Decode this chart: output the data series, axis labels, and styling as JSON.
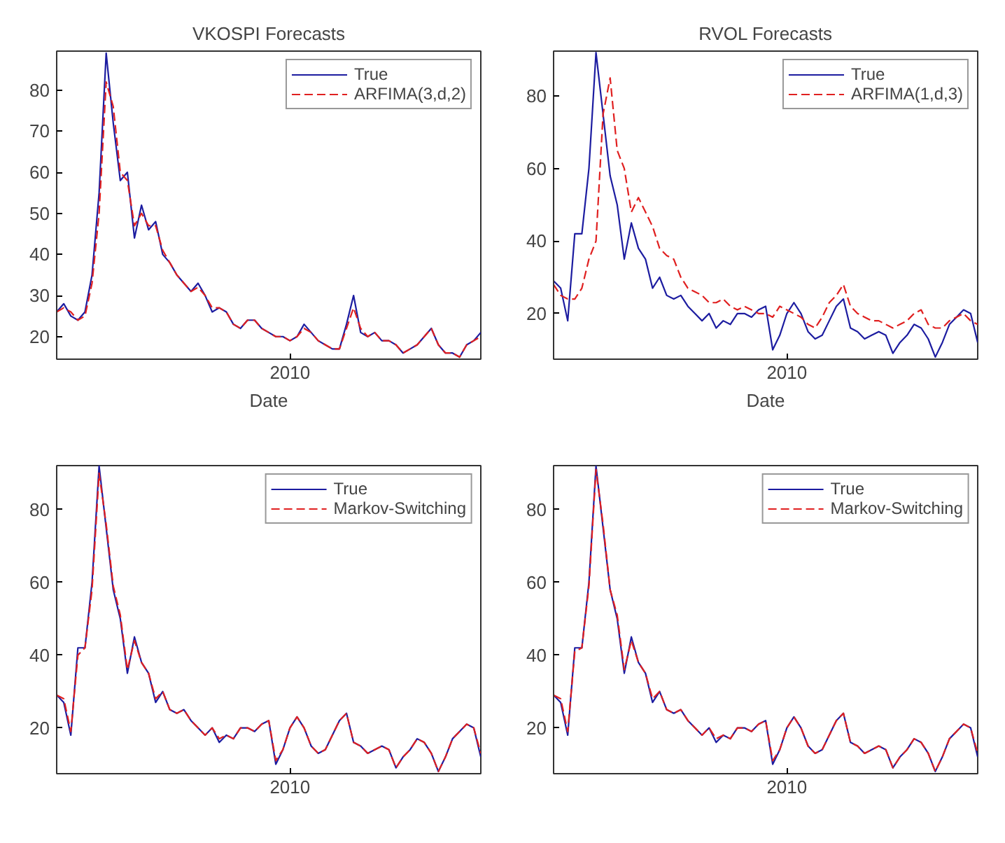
{
  "chart_data": [
    {
      "type": "line",
      "title": "VKOSPI Forecasts",
      "xlabel": "Date",
      "categories": [
        null,
        null,
        null,
        null,
        null,
        null,
        null,
        null,
        null,
        null,
        null,
        null,
        null,
        null,
        null,
        null,
        null,
        null,
        null,
        null,
        null,
        null,
        null,
        null,
        null,
        null,
        null,
        null,
        null,
        null,
        null,
        null,
        null,
        "2010",
        null,
        null,
        null,
        null,
        null,
        null,
        null,
        null,
        null,
        null,
        null,
        null,
        null,
        null,
        null,
        null,
        null,
        null,
        null,
        null,
        null,
        null,
        null,
        null,
        null,
        null,
        null
      ],
      "ylim": [
        14.5,
        89.5
      ],
      "yticks": [
        20,
        30,
        40,
        50,
        60,
        70,
        80
      ],
      "legend": "top right",
      "series": [
        {
          "name": "True",
          "color": "#1c1ca0",
          "line_style": "solid",
          "values": [
            26,
            28,
            25,
            24,
            26,
            35,
            55,
            89,
            72,
            58,
            60,
            44,
            52,
            46,
            48,
            40,
            38,
            35,
            33,
            31,
            33,
            30,
            26,
            27,
            26,
            23,
            22,
            24,
            24,
            22,
            21,
            20,
            20,
            19,
            20,
            23,
            21,
            19,
            18,
            17,
            17,
            23,
            30,
            21,
            20,
            21,
            19,
            19,
            18,
            16,
            17,
            18,
            20,
            22,
            18,
            16,
            16,
            15,
            18,
            19,
            21
          ]
        },
        {
          "name": "ARFIMA(3,d,2)",
          "color": "#e02020",
          "line_style": "dashed",
          "values": [
            26,
            27,
            26,
            24,
            25,
            33,
            50,
            82,
            76,
            60,
            58,
            47,
            50,
            47,
            47,
            41,
            38,
            35,
            33,
            31,
            32,
            30,
            27,
            27,
            26,
            23,
            22,
            24,
            24,
            22,
            21,
            20,
            20,
            19,
            20,
            22,
            21,
            19,
            18,
            17,
            17,
            22,
            27,
            22,
            20,
            21,
            19,
            19,
            18,
            16,
            17,
            18,
            20,
            22,
            18,
            16,
            16,
            15,
            18,
            19,
            20
          ]
        }
      ]
    },
    {
      "type": "line",
      "title": "RVOL Forecasts",
      "xlabel": "Date",
      "categories": [
        null,
        null,
        null,
        null,
        null,
        null,
        null,
        null,
        null,
        null,
        null,
        null,
        null,
        null,
        null,
        null,
        null,
        null,
        null,
        null,
        null,
        null,
        null,
        null,
        null,
        null,
        null,
        null,
        null,
        null,
        null,
        null,
        null,
        "2010",
        null,
        null,
        null,
        null,
        null,
        null,
        null,
        null,
        null,
        null,
        null,
        null,
        null,
        null,
        null,
        null,
        null,
        null,
        null,
        null,
        null,
        null,
        null,
        null,
        null,
        null,
        null
      ],
      "ylim": [
        7.4,
        92.4
      ],
      "yticks": [
        20,
        40,
        60,
        80
      ],
      "legend": "top right",
      "series": [
        {
          "name": "True",
          "color": "#1c1ca0",
          "line_style": "solid",
          "values": [
            29,
            27,
            18,
            42,
            42,
            60,
            92,
            75,
            58,
            50,
            35,
            45,
            38,
            35,
            27,
            30,
            25,
            24,
            25,
            22,
            20,
            18,
            20,
            16,
            18,
            17,
            20,
            20,
            19,
            21,
            22,
            10,
            14,
            20,
            23,
            20,
            15,
            13,
            14,
            18,
            22,
            24,
            16,
            15,
            13,
            14,
            15,
            14,
            9,
            12,
            14,
            17,
            16,
            13,
            8,
            12,
            17,
            19,
            21,
            20,
            12
          ]
        },
        {
          "name": "ARFIMA(1,d,3)",
          "color": "#e02020",
          "line_style": "dashed",
          "values": [
            28,
            25,
            24,
            24,
            27,
            35,
            40,
            75,
            85,
            65,
            60,
            48,
            52,
            48,
            44,
            38,
            36,
            35,
            30,
            27,
            26,
            25,
            23,
            23,
            24,
            22,
            21,
            22,
            21,
            20,
            20,
            19,
            22,
            21,
            20,
            19,
            17,
            16,
            19,
            23,
            25,
            28,
            22,
            20,
            19,
            18,
            18,
            17,
            16,
            17,
            18,
            20,
            21,
            17,
            16,
            16,
            18,
            19,
            20,
            18,
            17
          ]
        }
      ]
    },
    {
      "type": "line",
      "categories": [
        null,
        null,
        null,
        null,
        null,
        null,
        null,
        null,
        null,
        null,
        null,
        null,
        null,
        null,
        null,
        null,
        null,
        null,
        null,
        null,
        null,
        null,
        null,
        null,
        null,
        null,
        null,
        null,
        null,
        null,
        null,
        null,
        null,
        "2010",
        null,
        null,
        null,
        null,
        null,
        null,
        null,
        null,
        null,
        null,
        null,
        null,
        null,
        null,
        null,
        null,
        null,
        null,
        null,
        null,
        null,
        null,
        null,
        null,
        null,
        null,
        null
      ],
      "ylim": [
        7.4,
        92.1
      ],
      "yticks": [
        20,
        40,
        60,
        80
      ],
      "legend": "top right",
      "series": [
        {
          "name": "True",
          "color": "#1c1ca0",
          "line_style": "solid",
          "values": [
            29,
            27,
            18,
            42,
            42,
            60,
            92,
            75,
            58,
            50,
            35,
            45,
            38,
            35,
            27,
            30,
            25,
            24,
            25,
            22,
            20,
            18,
            20,
            16,
            18,
            17,
            20,
            20,
            19,
            21,
            22,
            10,
            14,
            20,
            23,
            20,
            15,
            13,
            14,
            18,
            22,
            24,
            16,
            15,
            13,
            14,
            15,
            14,
            9,
            12,
            14,
            17,
            16,
            13,
            8,
            12,
            17,
            19,
            21,
            20,
            12
          ]
        },
        {
          "name": "Markov-Switching",
          "color": "#e02020",
          "line_style": "dashed",
          "values": [
            29,
            28,
            19,
            40,
            42,
            58,
            90,
            76,
            59,
            51,
            36,
            44,
            38,
            35,
            28,
            30,
            25,
            24,
            25,
            22,
            20,
            18,
            20,
            17,
            18,
            17,
            20,
            20,
            19,
            21,
            22,
            11,
            14,
            20,
            23,
            20,
            15,
            13,
            14,
            18,
            22,
            24,
            16,
            15,
            13,
            14,
            15,
            14,
            9,
            12,
            14,
            17,
            16,
            13,
            8,
            12,
            17,
            19,
            21,
            20,
            13
          ]
        }
      ]
    },
    {
      "type": "line",
      "categories": [
        null,
        null,
        null,
        null,
        null,
        null,
        null,
        null,
        null,
        null,
        null,
        null,
        null,
        null,
        null,
        null,
        null,
        null,
        null,
        null,
        null,
        null,
        null,
        null,
        null,
        null,
        null,
        null,
        null,
        null,
        null,
        null,
        null,
        "2010",
        null,
        null,
        null,
        null,
        null,
        null,
        null,
        null,
        null,
        null,
        null,
        null,
        null,
        null,
        null,
        null,
        null,
        null,
        null,
        null,
        null,
        null,
        null,
        null,
        null,
        null,
        null
      ],
      "ylim": [
        7.4,
        92.1
      ],
      "yticks": [
        20,
        40,
        60,
        80
      ],
      "legend": "top right",
      "series": [
        {
          "name": "True",
          "color": "#1c1ca0",
          "line_style": "solid",
          "values": [
            29,
            27,
            18,
            42,
            42,
            60,
            92,
            75,
            58,
            50,
            35,
            45,
            38,
            35,
            27,
            30,
            25,
            24,
            25,
            22,
            20,
            18,
            20,
            16,
            18,
            17,
            20,
            20,
            19,
            21,
            22,
            10,
            14,
            20,
            23,
            20,
            15,
            13,
            14,
            18,
            22,
            24,
            16,
            15,
            13,
            14,
            15,
            14,
            9,
            12,
            14,
            17,
            16,
            13,
            8,
            12,
            17,
            19,
            21,
            20,
            12
          ]
        },
        {
          "name": "Markov-Switching",
          "color": "#e02020",
          "line_style": "dashed",
          "values": [
            29,
            28,
            19,
            41,
            42,
            59,
            91,
            76,
            58,
            51,
            36,
            44,
            38,
            35,
            28,
            30,
            25,
            24,
            25,
            22,
            20,
            18,
            20,
            17,
            18,
            17,
            20,
            20,
            19,
            21,
            22,
            11,
            14,
            20,
            23,
            20,
            15,
            13,
            14,
            18,
            22,
            24,
            16,
            15,
            13,
            14,
            15,
            14,
            9,
            12,
            14,
            17,
            16,
            13,
            8,
            12,
            17,
            19,
            21,
            20,
            13
          ]
        }
      ]
    }
  ]
}
